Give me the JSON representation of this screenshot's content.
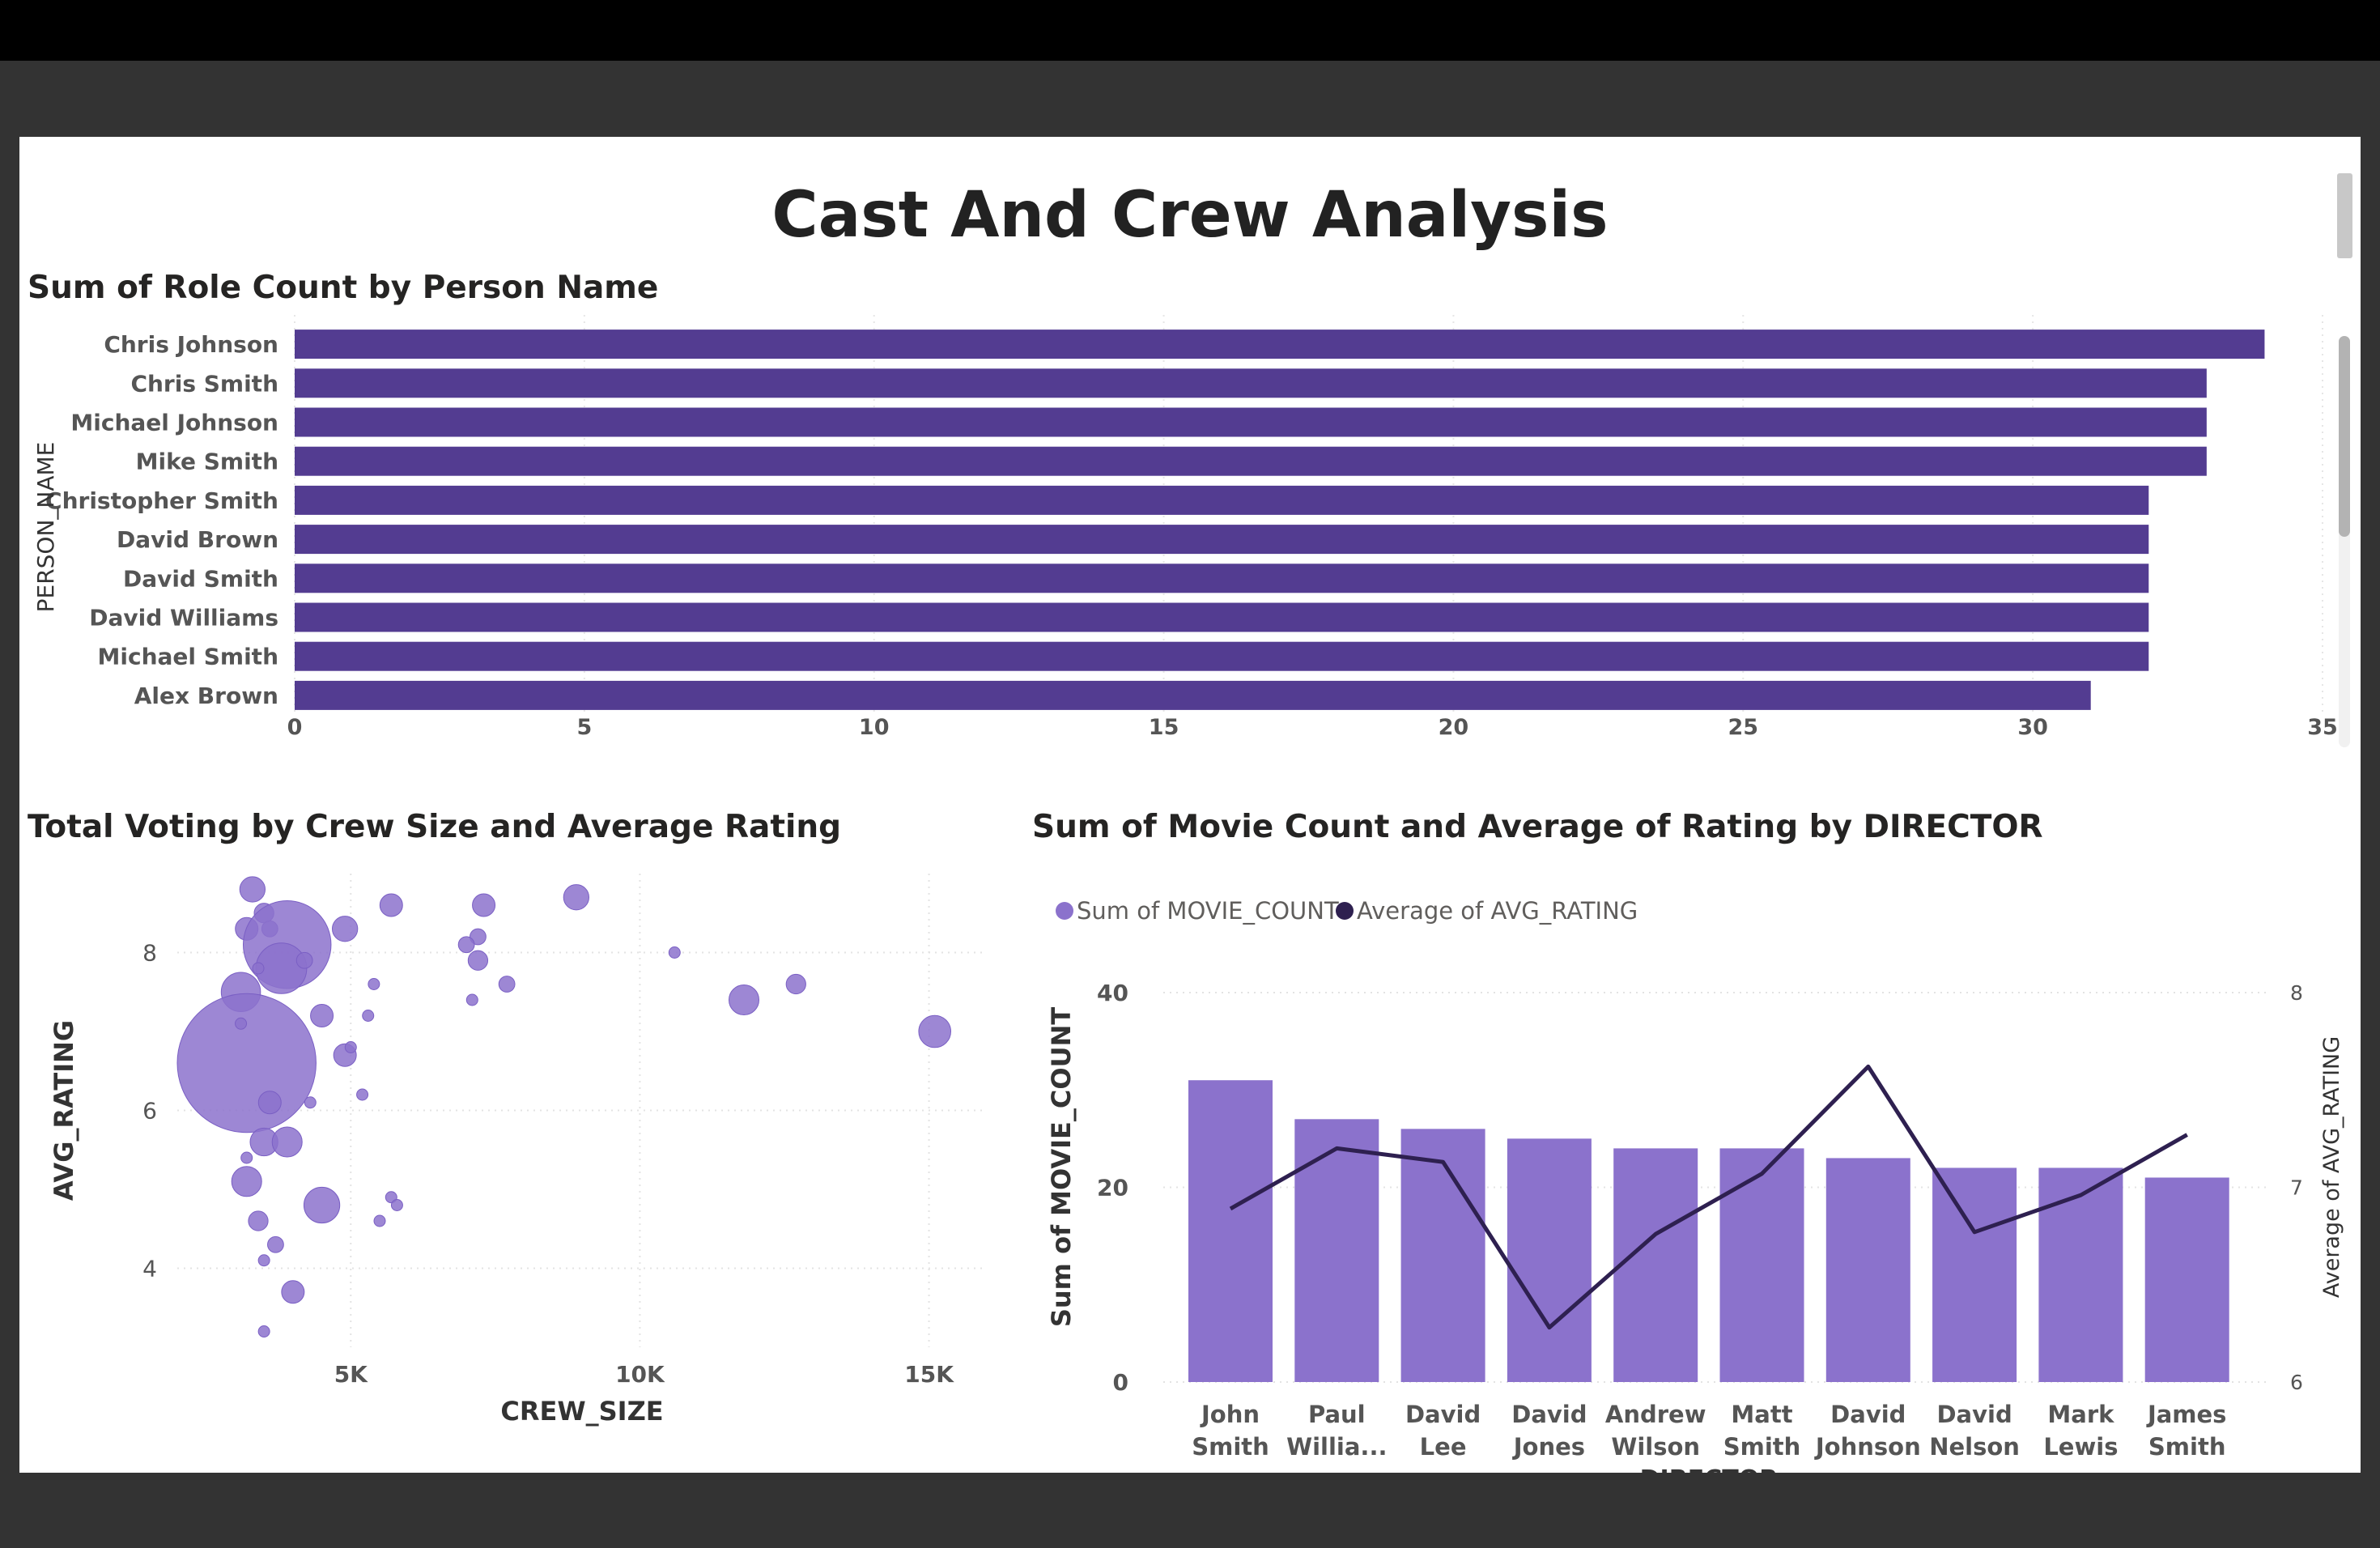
{
  "page": {
    "title": "Cast And Crew Analysis"
  },
  "colors": {
    "bar": "#533c91",
    "scatter": "#8c72cc",
    "combo_bar": "#8b72cc",
    "combo_line": "#2e2050",
    "frame": "#333333",
    "top": "#000000"
  },
  "bar_chart": {
    "title": "Sum of Role Count by Person Name"
  },
  "scatter_chart": {
    "title": "Total Voting by Crew Size and Average Rating"
  },
  "combo_chart": {
    "title": "Sum of Movie Count and Average of Rating by DIRECTOR"
  },
  "chart_data": [
    {
      "type": "bar",
      "orientation": "horizontal",
      "title": "Sum of Role Count by Person Name",
      "ylabel": "PERSON_NAME",
      "xlabel": "",
      "categories": [
        "Chris Johnson",
        "Chris Smith",
        "Michael Johnson",
        "Mike Smith",
        "Christopher Smith",
        "David Brown",
        "David Smith",
        "David Williams",
        "Michael Smith",
        "Alex Brown"
      ],
      "values": [
        34,
        33,
        33,
        33,
        32,
        32,
        32,
        32,
        32,
        31
      ],
      "xlim": [
        0,
        35
      ],
      "xticks": [
        0,
        5,
        10,
        15,
        20,
        25,
        30,
        35
      ],
      "grid": true
    },
    {
      "type": "scatter",
      "title": "Total Voting by Crew Size and Average Rating",
      "xlabel": "CREW_SIZE",
      "ylabel": "AVG_RATING",
      "xlim": [
        2000,
        16000
      ],
      "ylim": [
        3,
        9
      ],
      "xticks": [
        5000,
        10000,
        15000
      ],
      "xticklabels": [
        "5K",
        "10K",
        "15K"
      ],
      "yticks": [
        4,
        6,
        8
      ],
      "grid": true,
      "points": [
        {
          "x": 3300,
          "y": 8.8,
          "votes": 5
        },
        {
          "x": 3500,
          "y": 8.5,
          "votes": 3
        },
        {
          "x": 3200,
          "y": 8.3,
          "votes": 4
        },
        {
          "x": 3600,
          "y": 8.3,
          "votes": 2
        },
        {
          "x": 3900,
          "y": 8.1,
          "votes": 60
        },
        {
          "x": 3800,
          "y": 7.8,
          "votes": 20
        },
        {
          "x": 4200,
          "y": 7.9,
          "votes": 2
        },
        {
          "x": 3100,
          "y": 7.5,
          "votes": 12
        },
        {
          "x": 3400,
          "y": 7.8,
          "votes": 1
        },
        {
          "x": 4900,
          "y": 8.3,
          "votes": 5
        },
        {
          "x": 5700,
          "y": 8.6,
          "votes": 4
        },
        {
          "x": 7300,
          "y": 8.6,
          "votes": 4
        },
        {
          "x": 8900,
          "y": 8.7,
          "votes": 5
        },
        {
          "x": 7200,
          "y": 8.2,
          "votes": 2
        },
        {
          "x": 7200,
          "y": 7.9,
          "votes": 3
        },
        {
          "x": 7000,
          "y": 8.1,
          "votes": 2
        },
        {
          "x": 5400,
          "y": 7.6,
          "votes": 1
        },
        {
          "x": 7700,
          "y": 7.6,
          "votes": 2
        },
        {
          "x": 7100,
          "y": 7.4,
          "votes": 1
        },
        {
          "x": 10600,
          "y": 8.0,
          "votes": 1
        },
        {
          "x": 11800,
          "y": 7.4,
          "votes": 7
        },
        {
          "x": 12700,
          "y": 7.6,
          "votes": 3
        },
        {
          "x": 15100,
          "y": 7.0,
          "votes": 8
        },
        {
          "x": 4500,
          "y": 7.2,
          "votes": 4
        },
        {
          "x": 5300,
          "y": 7.2,
          "votes": 1
        },
        {
          "x": 3200,
          "y": 6.6,
          "votes": 150
        },
        {
          "x": 4900,
          "y": 6.7,
          "votes": 4
        },
        {
          "x": 5000,
          "y": 6.8,
          "votes": 1
        },
        {
          "x": 3100,
          "y": 7.1,
          "votes": 1
        },
        {
          "x": 3600,
          "y": 6.1,
          "votes": 4
        },
        {
          "x": 4300,
          "y": 6.1,
          "votes": 1
        },
        {
          "x": 5200,
          "y": 6.2,
          "votes": 1
        },
        {
          "x": 3200,
          "y": 5.4,
          "votes": 1
        },
        {
          "x": 3500,
          "y": 5.6,
          "votes": 6
        },
        {
          "x": 3900,
          "y": 5.6,
          "votes": 7
        },
        {
          "x": 3200,
          "y": 5.1,
          "votes": 7
        },
        {
          "x": 4500,
          "y": 4.8,
          "votes": 10
        },
        {
          "x": 5700,
          "y": 4.9,
          "votes": 1
        },
        {
          "x": 5800,
          "y": 4.8,
          "votes": 1
        },
        {
          "x": 5500,
          "y": 4.6,
          "votes": 1
        },
        {
          "x": 3400,
          "y": 4.6,
          "votes": 3
        },
        {
          "x": 3700,
          "y": 4.3,
          "votes": 2
        },
        {
          "x": 3500,
          "y": 4.1,
          "votes": 1
        },
        {
          "x": 4000,
          "y": 3.7,
          "votes": 4
        },
        {
          "x": 3500,
          "y": 3.2,
          "votes": 1
        }
      ]
    },
    {
      "type": "bar+line",
      "title": "Sum of Movie Count and Average of Rating by DIRECTOR",
      "xlabel": "DIRECTOR",
      "ylabel": "Sum of MOVIE_COUNT",
      "y2label": "Average of AVG_RATING",
      "legend": "top-left",
      "categories": [
        [
          "John",
          "Smith"
        ],
        [
          "Paul",
          "Willia..."
        ],
        [
          "David",
          "Lee"
        ],
        [
          "David",
          "Jones"
        ],
        [
          "Andrew",
          "Wilson"
        ],
        [
          "Matt",
          "Smith"
        ],
        [
          "David",
          "Johnson"
        ],
        [
          "David",
          "Nelson"
        ],
        [
          "Mark",
          "Lewis"
        ],
        [
          "James",
          "Smith"
        ]
      ],
      "ylim": [
        0,
        40
      ],
      "yticks": [
        0,
        20,
        40
      ],
      "y2lim": [
        6,
        8
      ],
      "y2ticks": [
        6,
        7,
        8
      ],
      "series": [
        {
          "name": "Sum of MOVIE_COUNT",
          "kind": "bar",
          "axis": "left",
          "values": [
            31,
            27,
            26,
            25,
            24,
            24,
            23,
            22,
            22,
            21
          ]
        },
        {
          "name": "Average of AVG_RATING",
          "kind": "line",
          "axis": "right",
          "values": [
            6.89,
            7.2,
            7.13,
            6.28,
            6.76,
            7.07,
            7.62,
            6.77,
            6.96,
            7.27
          ]
        }
      ]
    }
  ]
}
